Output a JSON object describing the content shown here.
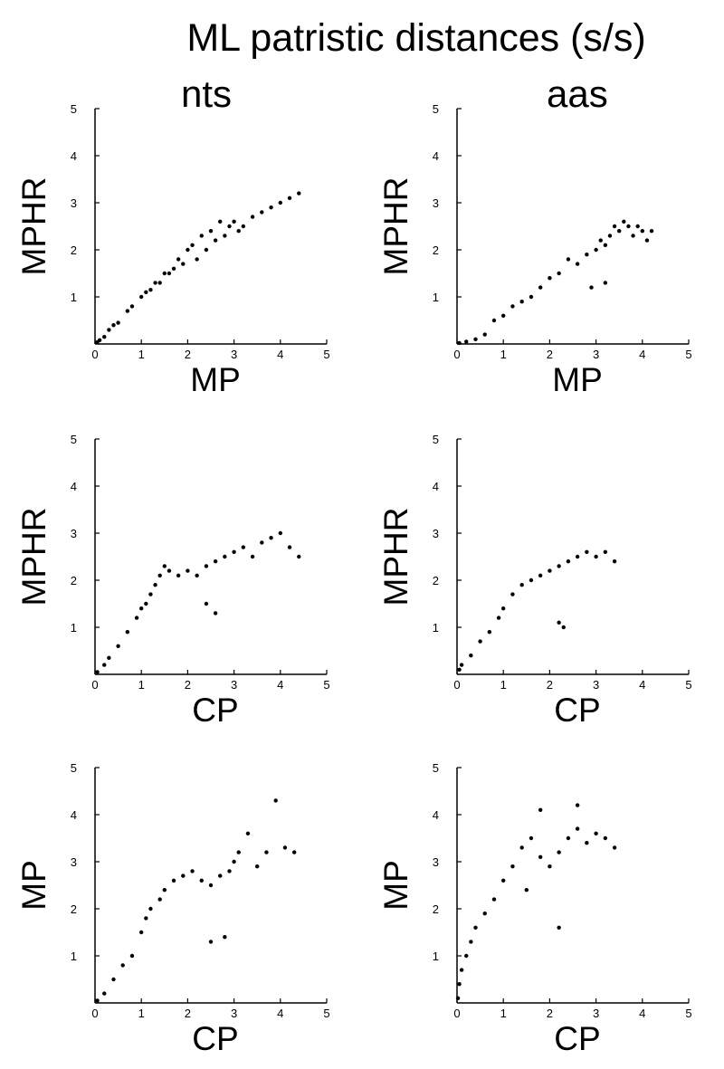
{
  "figure": {
    "title": "ML patristic distances (s/s)",
    "columns": [
      "nts",
      "aas"
    ]
  },
  "chart_data": [
    {
      "id": "nts-mp-mphr",
      "type": "scatter",
      "column": "nts",
      "xlabel": "MP",
      "ylabel": "MPHR",
      "xlim": [
        0,
        5
      ],
      "ylim": [
        0,
        5
      ],
      "xticks": [
        0,
        1,
        2,
        3,
        4,
        5
      ],
      "yticks": [
        1,
        2,
        3,
        4,
        5
      ],
      "points": [
        [
          0.05,
          0.04
        ],
        [
          0.1,
          0.08
        ],
        [
          0.2,
          0.15
        ],
        [
          0.3,
          0.3
        ],
        [
          0.4,
          0.4
        ],
        [
          0.5,
          0.45
        ],
        [
          0.7,
          0.7
        ],
        [
          0.8,
          0.8
        ],
        [
          1.0,
          1.0
        ],
        [
          1.1,
          1.1
        ],
        [
          1.2,
          1.15
        ],
        [
          1.3,
          1.3
        ],
        [
          1.4,
          1.3
        ],
        [
          1.5,
          1.5
        ],
        [
          1.6,
          1.5
        ],
        [
          1.7,
          1.6
        ],
        [
          1.8,
          1.8
        ],
        [
          1.9,
          1.7
        ],
        [
          2.0,
          2.0
        ],
        [
          2.1,
          2.1
        ],
        [
          2.2,
          1.8
        ],
        [
          2.3,
          2.3
        ],
        [
          2.4,
          2.0
        ],
        [
          2.5,
          2.4
        ],
        [
          2.6,
          2.2
        ],
        [
          2.7,
          2.6
        ],
        [
          2.8,
          2.3
        ],
        [
          2.9,
          2.5
        ],
        [
          3.0,
          2.6
        ],
        [
          3.1,
          2.4
        ],
        [
          3.2,
          2.5
        ],
        [
          3.4,
          2.7
        ],
        [
          3.6,
          2.8
        ],
        [
          3.8,
          2.9
        ],
        [
          4.0,
          3.0
        ],
        [
          4.2,
          3.1
        ],
        [
          4.4,
          3.2
        ]
      ]
    },
    {
      "id": "aas-mp-mphr",
      "type": "scatter",
      "column": "aas",
      "xlabel": "MP",
      "ylabel": "MPHR",
      "xlim": [
        0,
        5
      ],
      "ylim": [
        0,
        5
      ],
      "xticks": [
        0,
        1,
        2,
        3,
        4,
        5
      ],
      "yticks": [
        1,
        2,
        3,
        4,
        5
      ],
      "points": [
        [
          0.05,
          0.02
        ],
        [
          0.2,
          0.05
        ],
        [
          0.4,
          0.1
        ],
        [
          0.6,
          0.2
        ],
        [
          0.8,
          0.5
        ],
        [
          1.0,
          0.6
        ],
        [
          1.2,
          0.8
        ],
        [
          1.4,
          0.9
        ],
        [
          1.6,
          1.0
        ],
        [
          1.8,
          1.2
        ],
        [
          2.0,
          1.4
        ],
        [
          2.2,
          1.5
        ],
        [
          2.4,
          1.8
        ],
        [
          2.6,
          1.7
        ],
        [
          2.8,
          1.9
        ],
        [
          3.0,
          2.0
        ],
        [
          3.1,
          2.2
        ],
        [
          3.2,
          2.1
        ],
        [
          3.3,
          2.3
        ],
        [
          3.4,
          2.5
        ],
        [
          3.5,
          2.4
        ],
        [
          3.6,
          2.6
        ],
        [
          3.7,
          2.5
        ],
        [
          3.8,
          2.3
        ],
        [
          3.9,
          2.5
        ],
        [
          4.0,
          2.4
        ],
        [
          4.1,
          2.2
        ],
        [
          4.2,
          2.4
        ],
        [
          2.9,
          1.2
        ],
        [
          3.2,
          1.3
        ]
      ]
    },
    {
      "id": "nts-cp-mphr",
      "type": "scatter",
      "column": "nts",
      "xlabel": "CP",
      "ylabel": "MPHR",
      "xlim": [
        0,
        5
      ],
      "ylim": [
        0,
        5
      ],
      "xticks": [
        0,
        1,
        2,
        3,
        4,
        5
      ],
      "yticks": [
        1,
        2,
        3,
        4,
        5
      ],
      "points": [
        [
          0.05,
          0.05
        ],
        [
          0.2,
          0.2
        ],
        [
          0.3,
          0.35
        ],
        [
          0.5,
          0.6
        ],
        [
          0.7,
          0.9
        ],
        [
          0.9,
          1.2
        ],
        [
          1.0,
          1.4
        ],
        [
          1.1,
          1.5
        ],
        [
          1.2,
          1.7
        ],
        [
          1.3,
          1.9
        ],
        [
          1.4,
          2.1
        ],
        [
          1.5,
          2.3
        ],
        [
          1.6,
          2.2
        ],
        [
          1.8,
          2.1
        ],
        [
          2.0,
          2.2
        ],
        [
          2.2,
          2.1
        ],
        [
          2.4,
          2.3
        ],
        [
          2.6,
          2.4
        ],
        [
          2.8,
          2.5
        ],
        [
          3.0,
          2.6
        ],
        [
          3.2,
          2.7
        ],
        [
          3.4,
          2.5
        ],
        [
          3.6,
          2.8
        ],
        [
          3.8,
          2.9
        ],
        [
          4.0,
          3.0
        ],
        [
          4.2,
          2.7
        ],
        [
          4.4,
          2.5
        ],
        [
          2.6,
          1.3
        ],
        [
          2.4,
          1.5
        ]
      ]
    },
    {
      "id": "aas-cp-mphr",
      "type": "scatter",
      "column": "aas",
      "xlabel": "CP",
      "ylabel": "MPHR",
      "xlim": [
        0,
        5
      ],
      "ylim": [
        0,
        5
      ],
      "xticks": [
        0,
        1,
        2,
        3,
        4,
        5
      ],
      "yticks": [
        1,
        2,
        3,
        4,
        5
      ],
      "points": [
        [
          0.05,
          0.1
        ],
        [
          0.1,
          0.2
        ],
        [
          0.3,
          0.4
        ],
        [
          0.5,
          0.7
        ],
        [
          0.7,
          0.9
        ],
        [
          0.9,
          1.2
        ],
        [
          1.0,
          1.4
        ],
        [
          1.2,
          1.7
        ],
        [
          1.4,
          1.9
        ],
        [
          1.6,
          2.0
        ],
        [
          1.8,
          2.1
        ],
        [
          2.0,
          2.2
        ],
        [
          2.2,
          2.3
        ],
        [
          2.4,
          2.4
        ],
        [
          2.6,
          2.5
        ],
        [
          2.8,
          2.6
        ],
        [
          3.0,
          2.5
        ],
        [
          3.2,
          2.6
        ],
        [
          3.4,
          2.4
        ],
        [
          2.2,
          1.1
        ],
        [
          2.3,
          1.0
        ]
      ]
    },
    {
      "id": "nts-cp-mp",
      "type": "scatter",
      "column": "nts",
      "xlabel": "CP",
      "ylabel": "MP",
      "xlim": [
        0,
        5
      ],
      "ylim": [
        0,
        5
      ],
      "xticks": [
        0,
        1,
        2,
        3,
        4,
        5
      ],
      "yticks": [
        1,
        2,
        3,
        4,
        5
      ],
      "points": [
        [
          0.05,
          0.05
        ],
        [
          0.2,
          0.2
        ],
        [
          0.4,
          0.5
        ],
        [
          0.6,
          0.8
        ],
        [
          0.8,
          1.0
        ],
        [
          1.0,
          1.5
        ],
        [
          1.1,
          1.8
        ],
        [
          1.2,
          2.0
        ],
        [
          1.4,
          2.2
        ],
        [
          1.5,
          2.4
        ],
        [
          1.7,
          2.6
        ],
        [
          1.9,
          2.7
        ],
        [
          2.1,
          2.8
        ],
        [
          2.3,
          2.6
        ],
        [
          2.5,
          2.5
        ],
        [
          2.7,
          2.7
        ],
        [
          2.9,
          2.8
        ],
        [
          3.0,
          3.0
        ],
        [
          3.1,
          3.2
        ],
        [
          3.3,
          3.6
        ],
        [
          3.5,
          2.9
        ],
        [
          3.7,
          3.2
        ],
        [
          3.9,
          4.3
        ],
        [
          4.1,
          3.3
        ],
        [
          4.3,
          3.2
        ],
        [
          2.5,
          1.3
        ],
        [
          2.8,
          1.4
        ]
      ]
    },
    {
      "id": "aas-cp-mp",
      "type": "scatter",
      "column": "aas",
      "xlabel": "CP",
      "ylabel": "MP",
      "xlim": [
        0,
        5
      ],
      "ylim": [
        0,
        5
      ],
      "xticks": [
        0,
        1,
        2,
        3,
        4,
        5
      ],
      "yticks": [
        1,
        2,
        3,
        4,
        5
      ],
      "points": [
        [
          0.02,
          0.1
        ],
        [
          0.05,
          0.4
        ],
        [
          0.1,
          0.7
        ],
        [
          0.2,
          1.0
        ],
        [
          0.3,
          1.3
        ],
        [
          0.4,
          1.6
        ],
        [
          0.6,
          1.9
        ],
        [
          0.8,
          2.2
        ],
        [
          1.0,
          2.6
        ],
        [
          1.2,
          2.9
        ],
        [
          1.4,
          3.3
        ],
        [
          1.6,
          3.5
        ],
        [
          1.8,
          3.1
        ],
        [
          2.0,
          2.9
        ],
        [
          2.2,
          3.2
        ],
        [
          2.4,
          3.5
        ],
        [
          2.6,
          3.7
        ],
        [
          2.8,
          3.4
        ],
        [
          3.0,
          3.6
        ],
        [
          3.2,
          3.5
        ],
        [
          3.4,
          3.3
        ],
        [
          1.5,
          2.4
        ],
        [
          2.2,
          1.6
        ],
        [
          1.8,
          4.1
        ],
        [
          2.6,
          4.2
        ]
      ]
    }
  ]
}
